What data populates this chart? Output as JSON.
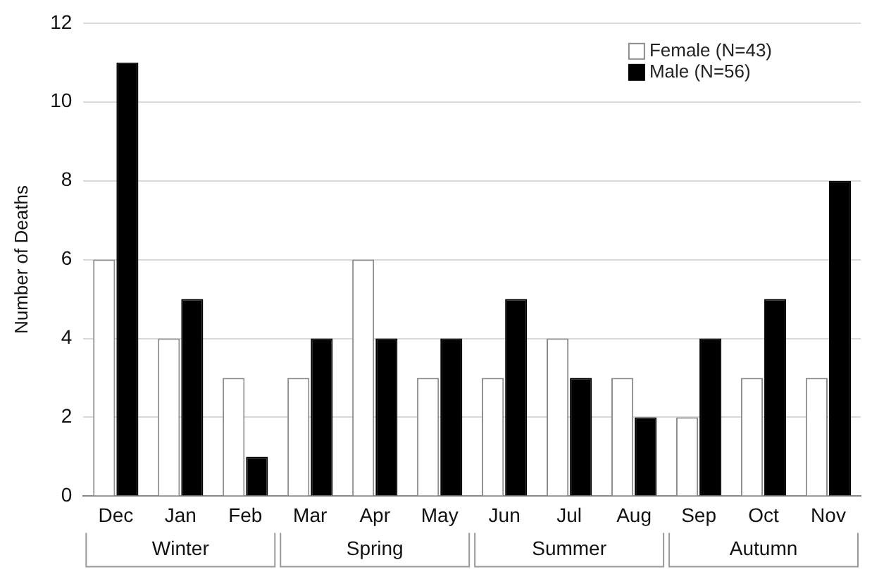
{
  "chart_data": {
    "type": "bar",
    "ylabel": "Number of Deaths",
    "categories": [
      "Dec",
      "Jan",
      "Feb",
      "Mar",
      "Apr",
      "May",
      "Jun",
      "Jul",
      "Aug",
      "Sep",
      "Oct",
      "Nov"
    ],
    "series": [
      {
        "name": "Female (N=43)",
        "color": "#ffffff",
        "values": [
          6,
          4,
          3,
          3,
          6,
          3,
          3,
          4,
          3,
          2,
          3,
          3
        ]
      },
      {
        "name": "Male (N=56)",
        "color": "#000000",
        "values": [
          11,
          5,
          1,
          4,
          4,
          4,
          5,
          3,
          2,
          4,
          5,
          8
        ]
      }
    ],
    "ylim": [
      0,
      12
    ],
    "yticks": [
      0,
      2,
      4,
      6,
      8,
      10,
      12
    ],
    "grid": "y",
    "legend": "top right",
    "annotations": [
      "Winter",
      "Spring",
      "Summer",
      "Autumn"
    ]
  }
}
